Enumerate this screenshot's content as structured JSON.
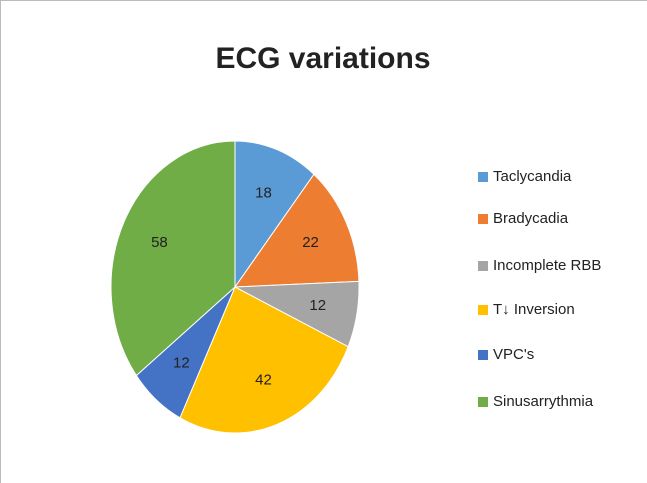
{
  "chart_data": {
    "type": "pie",
    "title": "ECG variations",
    "categories": [
      "Taclycandia",
      "Bradycadia",
      "Incomplete RBB",
      "T↓  Inversion",
      "VPC's",
      "Sinusarrythmia"
    ],
    "values": [
      18,
      22,
      12,
      42,
      12,
      58
    ],
    "colors": [
      "#5b9bd5",
      "#ed7d31",
      "#a5a5a5",
      "#ffc000",
      "#4472c4",
      "#70ad47"
    ],
    "legend": "right"
  }
}
